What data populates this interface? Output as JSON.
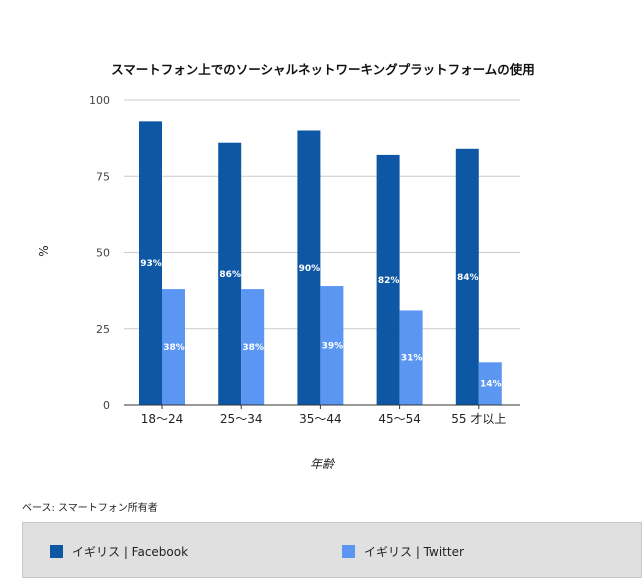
{
  "chart_data": {
    "type": "bar",
    "title": "スマートフォン上でのソーシャルネットワーキングプラットフォームの使用",
    "xlabel": "年齢",
    "ylabel": "%",
    "ylim": [
      0,
      100
    ],
    "yticks": [
      "0",
      "25",
      "50",
      "75",
      "100"
    ],
    "categories": [
      "18～24",
      "25～34",
      "35～44",
      "45～54",
      "55 才以上"
    ],
    "series": [
      {
        "name": "イギリス | Facebook",
        "color": "#0e57a5",
        "values": [
          93,
          86,
          90,
          82,
          84
        ],
        "labels": [
          "93%",
          "86%",
          "90%",
          "82%",
          "84%"
        ]
      },
      {
        "name": "イギリス | Twitter",
        "color": "#5b97f2",
        "values": [
          38,
          38,
          39,
          31,
          14
        ],
        "labels": [
          "38%",
          "38%",
          "39%",
          "31%",
          "14%"
        ]
      }
    ],
    "grid": true,
    "legend_position": "bottom"
  },
  "footnote": "ベース: スマートフォン所有者"
}
